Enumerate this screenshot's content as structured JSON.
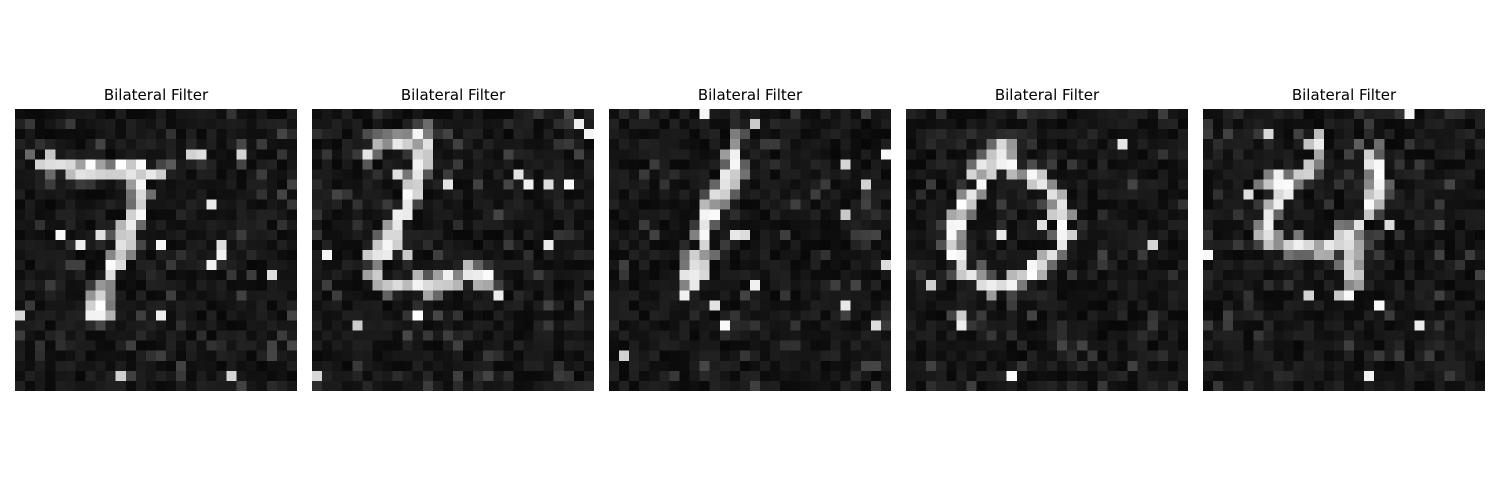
{
  "figure": {
    "panels": [
      {
        "title": "Bilateral Filter",
        "depicts": "handwritten digit 7",
        "strokes": [
          [
            [
              2.5,
              5.5
            ],
            [
              3.5,
              5.2
            ],
            [
              4.5,
              5.6
            ],
            [
              5.5,
              5.8
            ],
            [
              6.5,
              6.1
            ],
            [
              7.5,
              6.0
            ],
            [
              8.5,
              6.1
            ],
            [
              9.5,
              6.3
            ],
            [
              10.5,
              5.9
            ],
            [
              11.5,
              6.3
            ],
            [
              12.5,
              5.9
            ],
            [
              13.5,
              6.4
            ],
            [
              14.5,
              6.6
            ]
          ],
          [
            [
              11.5,
              6.6
            ],
            [
              12.5,
              7.6
            ],
            [
              12.6,
              8.5
            ],
            [
              12.3,
              9.5
            ],
            [
              12.0,
              10.5
            ],
            [
              11.5,
              11.5
            ],
            [
              11.0,
              12.5
            ],
            [
              10.8,
              13.5
            ],
            [
              10.5,
              14.5
            ],
            [
              10.0,
              15.5
            ],
            [
              9.6,
              16.5
            ],
            [
              9.2,
              17.5
            ],
            [
              8.5,
              18.5
            ],
            [
              8.0,
              19.5
            ],
            [
              7.5,
              20.5
            ]
          ],
          [
            [
              7.5,
              19.8
            ],
            [
              8.5,
              20.2
            ],
            [
              9.0,
              19.7
            ]
          ]
        ],
        "seed": 11
      },
      {
        "title": "Bilateral Filter",
        "depicts": "handwritten digit 2",
        "strokes": [
          [
            [
              5.5,
              4.3
            ],
            [
              6.5,
              3.6
            ],
            [
              7.5,
              3.3
            ],
            [
              8.5,
              3.3
            ],
            [
              9.5,
              3.3
            ],
            [
              10.5,
              3.1
            ],
            [
              11.2,
              3.6
            ],
            [
              11.0,
              4.5
            ],
            [
              10.6,
              5.5
            ],
            [
              10.2,
              6.5
            ],
            [
              9.9,
              7.5
            ],
            [
              9.6,
              8.5
            ],
            [
              9.3,
              9.5
            ],
            [
              9.0,
              10.5
            ],
            [
              8.5,
              11.5
            ],
            [
              8.0,
              12.5
            ],
            [
              7.5,
              13.5
            ],
            [
              7.0,
              14.5
            ],
            [
              6.6,
              15.5
            ],
            [
              6.4,
              16.5
            ],
            [
              6.5,
              17.5
            ]
          ],
          [
            [
              6.5,
              17.5
            ],
            [
              7.5,
              17.3
            ],
            [
              8.5,
              17.6
            ],
            [
              9.5,
              17.6
            ],
            [
              10.5,
              17.4
            ],
            [
              11.5,
              17.6
            ],
            [
              12.5,
              17.3
            ],
            [
              13.5,
              17.0
            ],
            [
              14.5,
              16.6
            ],
            [
              15.5,
              16.2
            ],
            [
              16.5,
              16.5
            ],
            [
              17.5,
              16.6
            ]
          ],
          [
            [
              10.0,
              3.0
            ],
            [
              10.8,
              2.4
            ]
          ]
        ],
        "seed": 23
      },
      {
        "title": "Bilateral Filter",
        "depicts": "handwritten digit 1",
        "strokes": [
          [
            [
              12.5,
              3.4
            ],
            [
              12.4,
              4.5
            ],
            [
              12.3,
              5.5
            ],
            [
              12.0,
              6.5
            ],
            [
              11.6,
              7.5
            ],
            [
              11.1,
              8.5
            ],
            [
              10.5,
              9.5
            ],
            [
              10.0,
              10.5
            ],
            [
              9.6,
              11.5
            ],
            [
              9.4,
              12.5
            ],
            [
              9.2,
              13.5
            ],
            [
              9.0,
              14.5
            ],
            [
              8.6,
              15.5
            ],
            [
              8.1,
              16.5
            ],
            [
              7.7,
              17.5
            ],
            [
              7.6,
              18.5
            ]
          ],
          [
            [
              7.6,
              16.8
            ],
            [
              8.5,
              17.2
            ],
            [
              9.3,
              16.5
            ]
          ]
        ],
        "seed": 37
      },
      {
        "title": "Bilateral Filter",
        "depicts": "handwritten digit 0",
        "strokes": [
          [
            [
              9.6,
              3.3
            ],
            [
              9.8,
              4.5
            ],
            [
              10.4,
              5.5
            ],
            [
              11.5,
              6.2
            ],
            [
              12.5,
              6.9
            ],
            [
              13.5,
              7.6
            ],
            [
              14.3,
              8.5
            ],
            [
              15.0,
              9.5
            ],
            [
              15.5,
              10.5
            ],
            [
              15.8,
              11.5
            ],
            [
              15.6,
              12.5
            ],
            [
              15.2,
              13.5
            ],
            [
              14.5,
              14.5
            ],
            [
              13.5,
              15.4
            ],
            [
              12.5,
              16.0
            ],
            [
              11.5,
              16.6
            ],
            [
              10.5,
              17.2
            ],
            [
              9.5,
              17.7
            ],
            [
              8.5,
              17.8
            ],
            [
              7.5,
              17.4
            ],
            [
              6.5,
              16.6
            ],
            [
              5.5,
              15.6
            ],
            [
              5.0,
              14.5
            ],
            [
              4.8,
              13.5
            ],
            [
              4.8,
              12.5
            ],
            [
              5.0,
              11.5
            ],
            [
              5.4,
              10.5
            ],
            [
              5.9,
              9.5
            ],
            [
              6.5,
              8.5
            ],
            [
              7.2,
              7.5
            ],
            [
              8.0,
              6.5
            ],
            [
              8.8,
              5.5
            ],
            [
              9.5,
              4.8
            ]
          ],
          [
            [
              6.5,
              6.3
            ],
            [
              7.5,
              5.9
            ]
          ]
        ],
        "seed": 53
      },
      {
        "title": "Bilateral Filter",
        "depicts": "handwritten digit 4",
        "strokes": [
          [
            [
              11.5,
              3.4
            ],
            [
              11.2,
              4.5
            ],
            [
              10.6,
              5.5
            ],
            [
              9.8,
              6.5
            ],
            [
              8.8,
              7.5
            ],
            [
              7.8,
              8.5
            ],
            [
              7.2,
              9.5
            ],
            [
              6.6,
              10.5
            ],
            [
              6.4,
              11.5
            ],
            [
              6.5,
              12.5
            ],
            [
              7.3,
              13.3
            ],
            [
              8.5,
              13.6
            ],
            [
              9.5,
              13.8
            ],
            [
              10.5,
              13.9
            ],
            [
              11.5,
              13.8
            ],
            [
              12.5,
              13.5
            ],
            [
              13.5,
              13.1
            ],
            [
              14.5,
              12.5
            ],
            [
              15.5,
              11.5
            ],
            [
              16.2,
              10.5
            ],
            [
              16.8,
              9.5
            ],
            [
              17.3,
              8.5
            ],
            [
              17.5,
              7.5
            ],
            [
              17.4,
              6.5
            ],
            [
              17.0,
              5.5
            ],
            [
              16.5,
              4.5
            ]
          ],
          [
            [
              14.5,
              13.2
            ],
            [
              14.7,
              14.5
            ],
            [
              14.8,
              15.5
            ],
            [
              14.8,
              16.5
            ],
            [
              14.6,
              17.5
            ],
            [
              14.2,
              18.5
            ]
          ],
          [
            [
              7.4,
              6.7
            ],
            [
              6.8,
              7.6
            ]
          ]
        ],
        "seed": 71
      }
    ]
  }
}
